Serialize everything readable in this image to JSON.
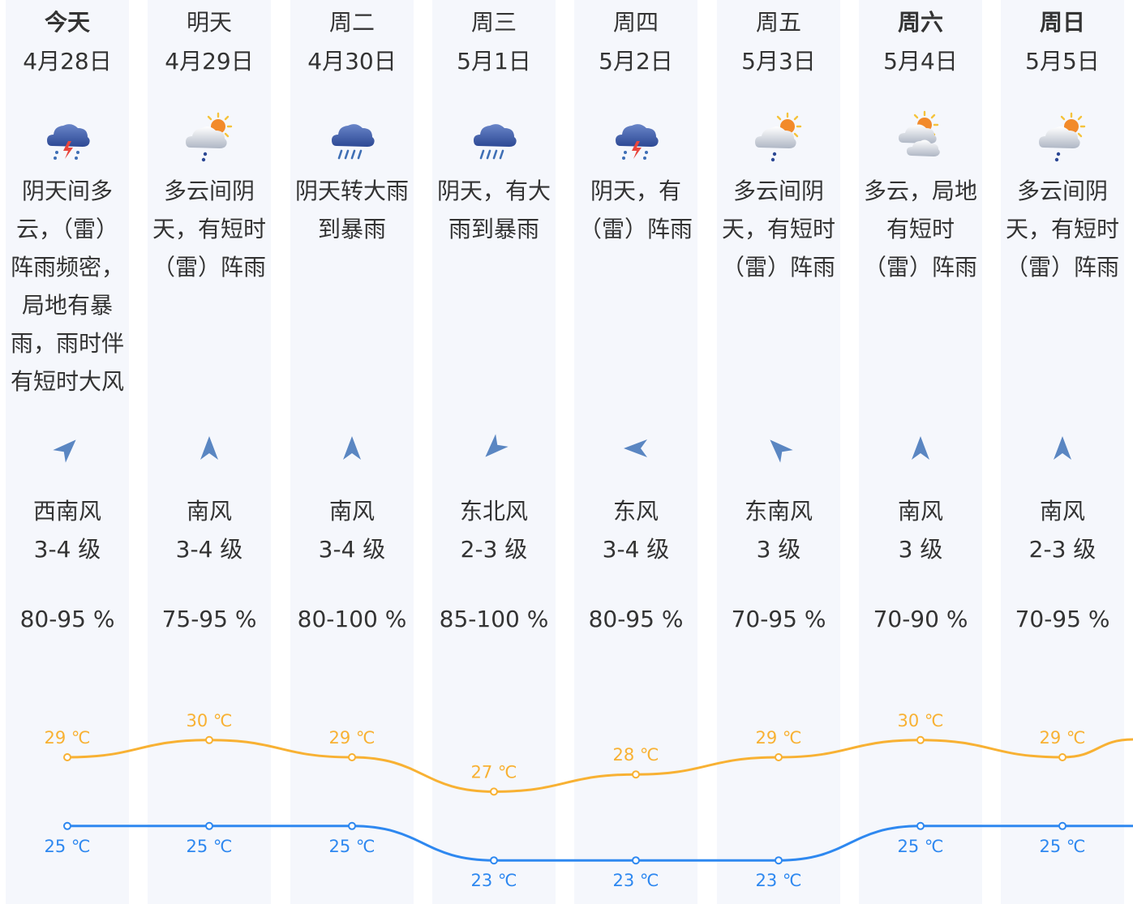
{
  "days": [
    {
      "day": "今天",
      "date": "4月28日",
      "icon": "thunderstorm-icon",
      "desc": [
        "阴天间多",
        "云，（雷）",
        "阵雨频密，",
        "局地有暴",
        "雨，雨时伴",
        "有短时大风"
      ],
      "wind": "西南风",
      "level": "3-4 级",
      "humidity": "80-95 %",
      "wind_from_deg": 225
    },
    {
      "day": "明天",
      "date": "4月29日",
      "icon": "partly-cloudy-shower-icon",
      "desc": [
        "多云间阴",
        "天，有短时",
        "（雷）阵雨"
      ],
      "wind": "南风",
      "level": "3-4 级",
      "humidity": "75-95 %",
      "wind_from_deg": 180
    },
    {
      "day": "周二",
      "date": "4月30日",
      "icon": "heavy-rain-icon",
      "desc": [
        "阴天转大雨",
        "到暴雨"
      ],
      "wind": "南风",
      "level": "3-4 级",
      "humidity": "80-100 %",
      "wind_from_deg": 180
    },
    {
      "day": "周三",
      "date": "5月1日",
      "icon": "heavy-rain-icon",
      "desc": [
        "阴天，有大",
        "雨到暴雨"
      ],
      "wind": "东北风",
      "level": "2-3 级",
      "humidity": "85-100 %",
      "wind_from_deg": 45
    },
    {
      "day": "周四",
      "date": "5月2日",
      "icon": "thunderstorm-icon",
      "desc": [
        "阴天，有",
        "（雷）阵雨"
      ],
      "wind": "东风",
      "level": "3-4 级",
      "humidity": "80-95 %",
      "wind_from_deg": 90
    },
    {
      "day": "周五",
      "date": "5月3日",
      "icon": "partly-cloudy-shower-icon",
      "desc": [
        "多云间阴",
        "天，有短时",
        "（雷）阵雨"
      ],
      "wind": "东南风",
      "level": "3 级",
      "humidity": "70-95 %",
      "wind_from_deg": 135
    },
    {
      "day": "周六",
      "date": "5月4日",
      "icon": "partly-cloudy-icon",
      "desc": [
        "多云，局地",
        "有短时",
        "（雷）阵雨"
      ],
      "wind": "南风",
      "level": "3 级",
      "humidity": "70-90 %",
      "wind_from_deg": 180
    },
    {
      "day": "周日",
      "date": "5月5日",
      "icon": "partly-cloudy-shower-icon",
      "desc": [
        "多云间阴",
        "天，有短时",
        "（雷）阵雨"
      ],
      "wind": "南风",
      "level": "2-3 级",
      "humidity": "70-95 %",
      "wind_from_deg": 180
    }
  ],
  "bold_days": [
    "今天",
    "周六",
    "周日"
  ],
  "temperature": {
    "high": [
      29,
      30,
      29,
      27,
      28,
      29,
      30,
      29
    ],
    "low": [
      25,
      25,
      25,
      23,
      23,
      23,
      25,
      25
    ],
    "unit": "℃",
    "high_color": "#f8b133",
    "low_color": "#2e88f0"
  },
  "colors": {
    "text": "#333333",
    "column_bg": "#f5f7fc",
    "arrow": "#5a86c2",
    "cloud_dark": "#3d5aa8",
    "bolt": "#e8453c"
  }
}
